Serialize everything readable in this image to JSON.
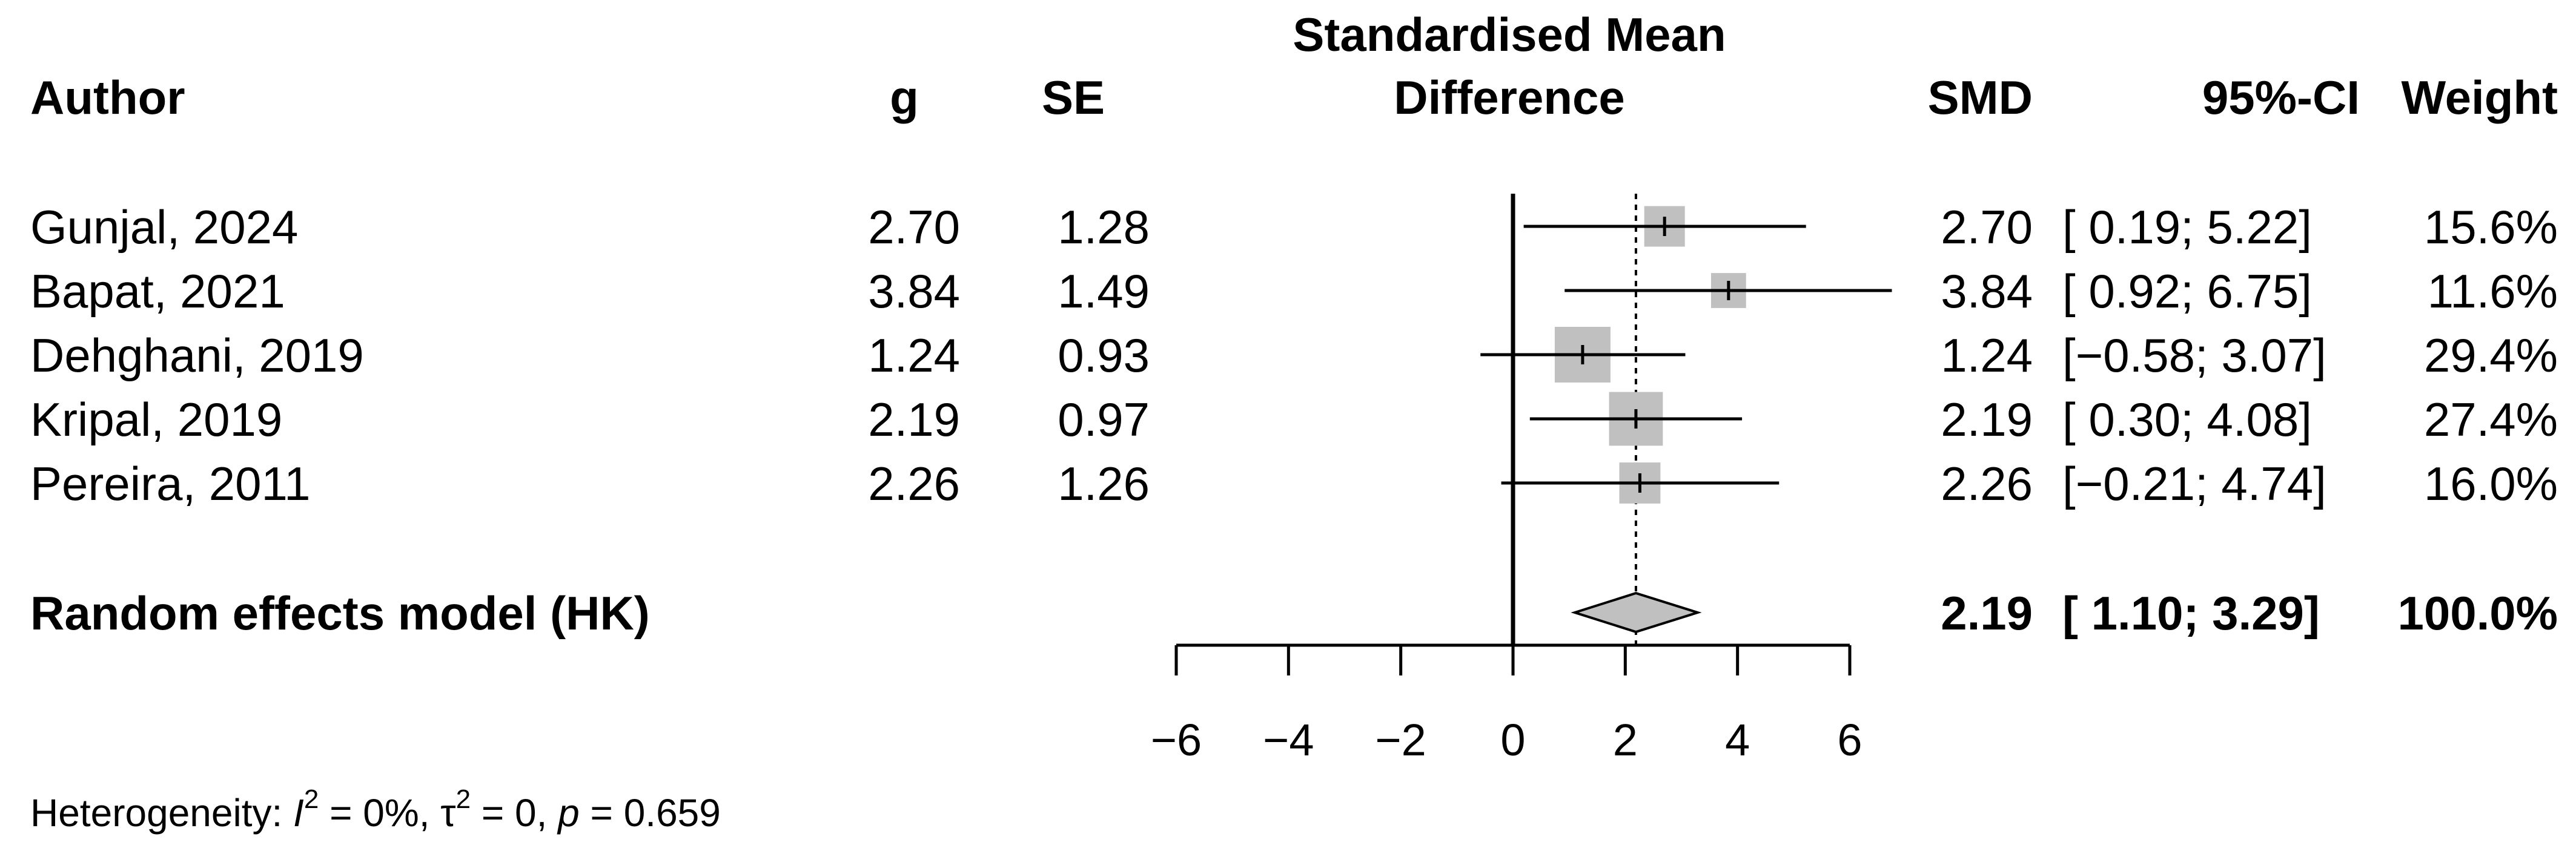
{
  "chart_data": {
    "type": "forest",
    "title_line1": "Standardised Mean",
    "title_line2": "Difference",
    "columns": {
      "author": "Author",
      "g": "g",
      "se": "SE",
      "smd": "SMD",
      "ci": "95%-CI",
      "weight": "Weight"
    },
    "studies": [
      {
        "author": "Gunjal, 2024",
        "g": "2.70",
        "se": "1.28",
        "smd": "2.70",
        "ci": "[ 0.19; 5.22]",
        "weight": "15.6%",
        "est": 2.7,
        "lower": 0.19,
        "upper": 5.22,
        "w": 15.6
      },
      {
        "author": "Bapat, 2021",
        "g": "3.84",
        "se": "1.49",
        "smd": "3.84",
        "ci": "[ 0.92; 6.75]",
        "weight": "11.6%",
        "est": 3.84,
        "lower": 0.92,
        "upper": 6.75,
        "w": 11.6
      },
      {
        "author": "Dehghani, 2019",
        "g": "1.24",
        "se": "0.93",
        "smd": "1.24",
        "ci": "[−0.58; 3.07]",
        "weight": "29.4%",
        "est": 1.24,
        "lower": -0.58,
        "upper": 3.07,
        "w": 29.4
      },
      {
        "author": "Kripal, 2019",
        "g": "2.19",
        "se": "0.97",
        "smd": "2.19",
        "ci": "[ 0.30; 4.08]",
        "weight": "27.4%",
        "est": 2.19,
        "lower": 0.3,
        "upper": 4.08,
        "w": 27.4
      },
      {
        "author": "Pereira, 2011",
        "g": "2.26",
        "se": "1.26",
        "smd": "2.26",
        "ci": "[−0.21; 4.74]",
        "weight": "16.0%",
        "est": 2.26,
        "lower": -0.21,
        "upper": 4.74,
        "w": 16.0
      }
    ],
    "pooled": {
      "label": "Random effects model (HK)",
      "smd": "2.19",
      "ci": "[ 1.10; 3.29]",
      "weight": "100.0%",
      "est": 2.19,
      "lower": 1.1,
      "upper": 3.29
    },
    "xlim": [
      -6,
      6
    ],
    "ticks": [
      -6,
      -4,
      -2,
      0,
      2,
      4,
      6
    ],
    "tick_labels": [
      "−6",
      "−4",
      "−2",
      "0",
      "2",
      "4",
      "6"
    ],
    "null_line": 0,
    "heterogeneity": {
      "prefix": "Heterogeneity: ",
      "i2_symbol": "I",
      "i2_value": " = 0%, ",
      "tau2_symbol": "τ",
      "tau2_value": " = 0, ",
      "p_symbol": "p",
      "p_value": " = 0.659",
      "squared": "2"
    },
    "colors": {
      "square": "#c0c0c0",
      "diamond": "#c0c0c0",
      "line": "#000000"
    }
  }
}
